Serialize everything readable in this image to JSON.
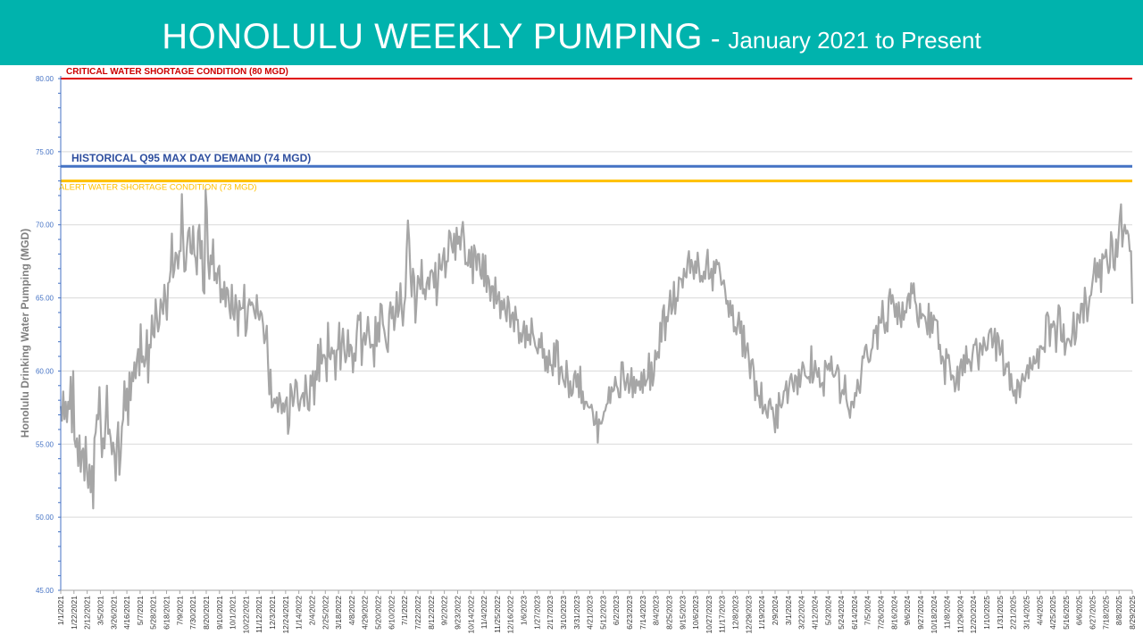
{
  "header": {
    "title_main": "HONOLULU WEEKLY PUMPING",
    "title_sep": " - ",
    "title_sub": "January 2021 to Present",
    "background_color": "#00b3ad"
  },
  "chart_data": {
    "type": "line",
    "title": "HONOLULU WEEKLY PUMPING - January 2021 to Present",
    "ylabel": "Honolulu Drinking Water Pumping (MGD)",
    "xlabel": "",
    "ylim": [
      45,
      80
    ],
    "yticks": [
      "45.00",
      "50.00",
      "55.00",
      "60.00",
      "65.00",
      "70.00",
      "75.00",
      "80.00"
    ],
    "grid": true,
    "x_start": "1/1/2021",
    "x_end": "8/29/2025",
    "xtick_labels": [
      "1/1/2021",
      "1/22/2021",
      "2/12/2021",
      "3/5/2021",
      "3/26/2021",
      "4/16/2021",
      "5/7/2021",
      "5/28/2021",
      "6/18/2021",
      "7/9/2021",
      "7/30/2021",
      "8/20/2021",
      "9/10/2021",
      "10/1/2021",
      "10/22/2021",
      "11/12/2021",
      "12/3/2021",
      "12/24/2021",
      "1/14/2022",
      "2/4/2022",
      "2/25/2022",
      "3/18/2022",
      "4/8/2022",
      "4/29/2022",
      "5/20/2022",
      "6/10/2022",
      "7/1/2022",
      "7/22/2022",
      "8/12/2022",
      "9/2/2022",
      "9/23/2022",
      "10/14/2022",
      "11/4/2022",
      "11/25/2022",
      "12/16/2022",
      "1/6/2023",
      "1/27/2023",
      "2/17/2023",
      "3/10/2023",
      "3/31/2023",
      "4/21/2023",
      "5/12/2023",
      "6/2/2023",
      "6/23/2023",
      "7/14/2023",
      "8/4/2023",
      "8/25/2023",
      "9/15/2023",
      "10/6/2023",
      "10/27/2023",
      "11/17/2023",
      "12/8/2023",
      "12/29/2023",
      "1/19/2024",
      "2/9/2024",
      "3/1/2024",
      "3/22/2024",
      "4/12/2024",
      "5/3/2024",
      "5/24/2024",
      "6/14/2024",
      "7/5/2024",
      "7/26/2024",
      "8/16/2024",
      "9/6/2024",
      "9/27/2024",
      "10/18/2024",
      "11/8/2024",
      "11/29/2024",
      "12/20/2024",
      "1/10/2025",
      "1/31/2025",
      "2/21/2025",
      "3/14/2025",
      "4/4/2025",
      "4/25/2025",
      "5/16/2025",
      "6/6/2025",
      "6/27/2025",
      "7/18/2025",
      "8/8/2025",
      "8/29/2025"
    ],
    "series": [
      {
        "color": "#a6a6a6",
        "sampling": "approximately daily values, 1/1/2021 to 8/29/2025",
        "values": [
          57.6,
          56.6,
          58.6,
          56.7,
          57.9,
          56.5,
          57.9,
          57.4,
          59.6,
          55.8,
          60.0,
          55.3,
          54.8,
          55.4,
          53.5,
          55.6,
          53.1,
          54.5,
          54.7,
          52.5,
          55.5,
          53.1,
          52.0,
          53.6,
          51.7,
          53.5,
          50.6,
          55.4,
          55.8,
          57.0,
          56.7,
          58.9,
          56.3,
          54.1,
          55.4,
          54.7,
          56.7,
          59.0,
          55.7,
          56.0,
          55.4,
          54.3,
          55.1,
          54.4,
          52.5,
          55.2,
          56.5,
          52.9,
          54.2,
          56.2,
          56.7,
          59.3,
          57.3,
          58.8,
          56.3,
          59.9,
          58.0,
          59.9,
          59.3,
          60.6,
          59.5,
          60.8,
          61.5,
          59.7,
          63.2,
          60.6,
          61.0,
          60.3,
          60.8,
          62.8,
          59.2,
          61.8,
          61.6,
          63.8,
          62.5,
          62.3,
          64.9,
          63.7,
          62.7,
          63.2,
          64.9,
          64.5,
          63.9,
          65.9,
          64.8,
          63.5,
          66.0,
          66.1,
          66.9,
          69.4,
          66.4,
          66.9,
          68.1,
          67.9,
          67.0,
          68.2,
          68.2,
          72.1,
          69.2,
          66.8,
          66.9,
          68.4,
          69.5,
          69.8,
          68.1,
          68.0,
          69.9,
          68.0,
          67.7,
          66.6,
          69.5,
          70.0,
          67.7,
          68.9,
          65.5,
          65.3,
          72.4,
          71.0,
          67.5,
          66.3,
          67.9,
          67.3,
          69.0,
          66.2,
          66.7,
          66.0,
          67.0,
          67.2,
          64.7,
          65.6,
          64.9,
          66.1,
          64.4,
          65.7,
          65.5,
          64.3,
          63.6,
          65.9,
          63.9,
          63.5,
          65.2,
          64.4,
          62.4,
          64.8,
          64.2,
          64.3,
          64.3,
          65.9,
          62.4,
          62.9,
          64.4,
          64.9,
          64.5,
          64.7,
          64.5,
          64.0,
          63.6,
          65.2,
          63.9,
          63.5,
          64.1,
          63.9,
          63.2,
          61.9,
          62.3,
          63.1,
          60.5,
          58.4,
          60.1,
          57.5,
          57.6,
          58.1,
          57.8,
          58.2,
          57.2,
          58.5,
          58.0,
          57.1,
          57.8,
          57.2,
          57.9,
          58.2,
          55.7,
          56.3,
          59.1,
          58.6,
          57.6,
          58.2,
          59.4,
          59.2,
          57.8,
          57.3,
          58.0,
          58.3,
          58.5,
          57.6,
          59.7,
          58.5,
          57.4,
          57.3,
          59.7,
          59.0,
          60.0,
          57.7,
          60.0,
          59.4,
          61.8,
          59.3,
          62.2,
          60.5,
          61.1,
          61.1,
          60.8,
          59.3,
          63.3,
          61.0,
          60.8,
          61.6,
          61.2,
          61.4,
          59.4,
          61.4,
          61.5,
          63.3,
          60.1,
          61.9,
          62.9,
          61.5,
          60.6,
          61.0,
          62.8,
          61.0,
          61.8,
          61.6,
          59.9,
          61.2,
          60.7,
          62.6,
          63.8,
          63.5,
          64.0,
          60.4,
          62.1,
          62.6,
          61.8,
          62.6,
          63.7,
          62.5,
          61.6,
          61.8,
          61.8,
          60.3,
          63.7,
          61.7,
          63.3,
          62.0,
          64.6,
          64.5,
          63.2,
          62.8,
          62.2,
          61.6,
          61.3,
          63.9,
          64.7,
          63.6,
          64.4,
          62.8,
          63.7,
          65.4,
          63.7,
          64.2,
          66.0,
          64.2,
          63.1,
          64.5,
          65.1,
          68.3,
          70.3,
          69.0,
          66.7,
          65.1,
          67.0,
          66.4,
          63.3,
          64.8,
          66.5,
          66.2,
          65.6,
          67.6,
          65.3,
          65.6,
          64.9,
          66.0,
          66.4,
          65.6,
          66.8,
          66.9,
          66.7,
          65.7,
          67.4,
          64.5,
          65.9,
          68.0,
          67.0,
          66.9,
          67.8,
          68.4,
          66.4,
          67.5,
          67.5,
          69.6,
          69.4,
          68.6,
          68.1,
          69.4,
          67.6,
          69.8,
          68.7,
          69.2,
          68.3,
          69.6,
          70.2,
          69.0,
          67.3,
          67.4,
          67.2,
          68.3,
          67.1,
          68.5,
          66.0,
          68.6,
          68.2,
          66.9,
          68.0,
          68.0,
          66.6,
          66.3,
          68.0,
          65.8,
          67.9,
          65.4,
          66.5,
          66.2,
          64.8,
          65.8,
          65.8,
          64.3,
          66.4,
          64.6,
          65.0,
          65.4,
          63.6,
          64.8,
          64.2,
          64.9,
          64.0,
          63.4,
          65.1,
          64.6,
          63.0,
          63.8,
          64.0,
          62.7,
          64.4,
          63.5,
          63.5,
          61.9,
          62.6,
          62.0,
          62.7,
          63.4,
          61.6,
          63.1,
          62.1,
          62.5,
          61.8,
          63.6,
          62.6,
          62.2,
          61.7,
          61.5,
          61.2,
          62.2,
          61.6,
          62.6,
          60.9,
          61.5,
          60.0,
          61.0,
          59.9,
          61.4,
          60.4,
          60.4,
          59.7,
          61.9,
          60.3,
          62.1,
          62.0,
          59.1,
          60.2,
          60.3,
          59.5,
          59.2,
          58.9,
          60.7,
          59.5,
          58.2,
          59.3,
          58.3,
          58.5,
          59.7,
          60.0,
          58.9,
          59.8,
          58.2,
          60.3,
          57.8,
          58.6,
          57.4,
          57.9,
          57.9,
          57.6,
          57.5,
          57.5,
          57.7,
          57.2,
          56.3,
          56.4,
          57.2,
          55.1,
          56.7,
          56.4,
          56.4,
          56.7,
          57.2,
          57.3,
          57.7,
          57.8,
          58.9,
          57.8,
          58.9,
          58.6,
          58.7,
          59.6,
          59.0,
          58.8,
          58.2,
          58.2,
          60.6,
          60.6,
          59.4,
          58.7,
          59.3,
          59.8,
          58.5,
          59.0,
          60.2,
          58.2,
          59.6,
          58.5,
          59.4,
          59.0,
          59.3,
          58.7,
          59.9,
          58.5,
          60.1,
          59.0,
          59.3,
          59.5,
          61.2,
          58.7,
          60.6,
          59.0,
          59.7,
          61.4,
          60.8,
          61.3,
          60.9,
          63.3,
          62.0,
          64.1,
          64.5,
          62.1,
          63.7,
          63.4,
          64.4,
          65.5,
          63.9,
          64.3,
          66.1,
          63.9,
          65.0,
          64.8,
          66.4,
          66.3,
          66.3,
          65.7,
          67.0,
          66.5,
          66.4,
          67.6,
          68.2,
          66.7,
          67.6,
          67.2,
          66.3,
          67.5,
          66.7,
          68.1,
          67.1,
          66.1,
          66.5,
          66.1,
          66.8,
          66.3,
          67.5,
          68.3,
          66.3,
          66.4,
          67.0,
          65.5,
          67.5,
          66.7,
          67.6,
          67.3,
          67.4,
          66.7,
          65.9,
          66.0,
          66.2,
          65.5,
          64.6,
          64.8,
          63.7,
          64.8,
          63.8,
          64.5,
          62.7,
          63.0,
          62.5,
          63.2,
          64.0,
          62.6,
          63.4,
          61.0,
          63.1,
          60.9,
          61.5,
          61.9,
          60.8,
          59.5,
          60.7,
          60.8,
          60.0,
          58.0,
          59.3,
          58.3,
          58.3,
          57.5,
          59.2,
          57.1,
          57.4,
          57.7,
          57.1,
          56.8,
          57.9,
          58.1,
          57.4,
          57.5,
          56.7,
          55.8,
          57.7,
          56.1,
          58.5,
          57.7,
          57.5,
          57.8,
          58.6,
          58.7,
          59.3,
          57.8,
          58.8,
          59.5,
          59.8,
          59.1,
          58.6,
          59.7,
          59.6,
          58.4,
          60.1,
          58.9,
          59.8,
          60.6,
          60.3,
          59.7,
          59.6,
          59.5,
          59.6,
          59.2,
          61.7,
          59.2,
          59.6,
          60.7,
          60.0,
          59.6,
          60.2,
          58.9,
          59.1,
          59.2,
          58.3,
          60.7,
          60.4,
          60.1,
          60.5,
          60.0,
          61.0,
          59.8,
          59.6,
          59.7,
          60.0,
          60.4,
          60.1,
          57.8,
          58.4,
          58.7,
          58.4,
          59.7,
          58.1,
          57.6,
          57.3,
          56.8,
          57.9,
          57.9,
          57.5,
          58.5,
          58.3,
          59.4,
          58.8,
          58.5,
          59.8,
          61.0,
          60.9,
          61.6,
          61.8,
          61.0,
          60.6,
          60.7,
          61.4,
          61.6,
          62.8,
          62.6,
          63.1,
          61.5,
          63.7,
          63.3,
          63.3,
          64.8,
          63.3,
          62.6,
          63.3,
          62.7,
          65.0,
          65.6,
          64.6,
          65.2,
          64.6,
          63.7,
          64.6,
          63.2,
          64.7,
          63.7,
          63.0,
          64.7,
          63.5,
          64.1,
          64.0,
          65.0,
          65.3,
          64.3,
          66.0,
          65.3,
          66.0,
          64.8,
          64.5,
          63.4,
          63.0,
          64.6,
          63.6,
          63.9,
          63.8,
          63.7,
          63.2,
          62.5,
          64.6,
          62.3,
          64.0,
          62.6,
          63.8,
          63.5,
          63.5,
          63.4,
          61.5,
          61.8,
          60.5,
          61.0,
          60.7,
          59.1,
          61.5,
          60.9,
          61.1,
          60.3,
          59.4,
          59.7,
          59.6,
          58.6,
          59.1,
          60.3,
          58.7,
          60.3,
          60.8,
          59.7,
          61.1,
          59.9,
          61.7,
          60.5,
          60.8,
          60.6,
          60.0,
          61.1,
          61.8,
          61.8,
          62.2,
          61.1,
          60.1,
          61.9,
          61.7,
          61.1,
          62.3,
          61.8,
          61.4,
          61.5,
          62.5,
          62.8,
          62.9,
          61.6,
          62.1,
          62.9,
          60.7,
          62.6,
          62.3,
          61.1,
          61.4,
          62.1,
          59.7,
          59.8,
          60.5,
          60.3,
          60.6,
          58.7,
          59.8,
          58.7,
          58.3,
          58.7,
          57.8,
          59.4,
          59.2,
          58.2,
          59.2,
          59.8,
          59.4,
          59.3,
          59.9,
          60.4,
          59.5,
          60.9,
          60.2,
          60.1,
          61.0,
          60.5,
          60.6,
          61.5,
          60.2,
          61.7,
          61.7,
          61.5,
          61.6,
          61.3,
          63.8,
          64.0,
          63.7,
          61.7,
          63.2,
          63.0,
          63.4,
          63.1,
          61.3,
          63.0,
          64.5,
          64.3,
          62.1,
          62.0,
          63.2,
          61.1,
          61.8,
          62.2,
          62.2,
          62.0,
          61.7,
          62.6,
          64.0,
          61.8,
          62.3,
          63.9,
          63.8,
          63.3,
          64.6,
          64.6,
          63.3,
          65.7,
          64.8,
          63.4,
          64.3,
          65.1,
          65.2,
          66.0,
          66.7,
          67.7,
          66.1,
          67.4,
          66.4,
          67.6,
          65.4,
          68.0,
          67.7,
          67.8,
          68.3,
          67.4,
          66.7,
          67.1,
          69.5,
          68.9,
          67.1,
          66.9,
          69.0,
          67.8,
          69.2,
          70.5,
          71.4,
          68.5,
          69.5,
          70.0,
          69.4,
          69.6,
          69.3,
          68.2,
          68.2,
          64.6
        ]
      }
    ],
    "reference_lines": [
      {
        "label": "CRITICAL WATER SHORTAGE CONDITION (80 MGD)",
        "y": 80,
        "color": "#e00000"
      },
      {
        "label": "HISTORICAL Q95 MAX DAY DEMAND (74 MGD)",
        "y": 74,
        "color": "#4472c4"
      },
      {
        "label": "ALERT WATER SHORTAGE CONDITION (73 MGD)",
        "y": 73,
        "color": "#ffc000"
      }
    ]
  }
}
